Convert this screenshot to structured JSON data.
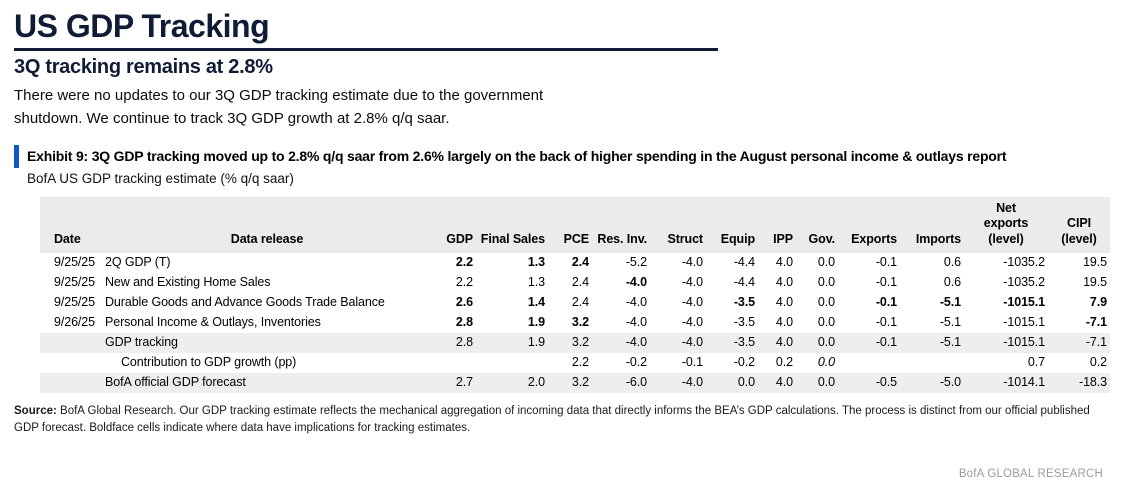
{
  "header": {
    "title": "US GDP Tracking",
    "subtitle": "3Q tracking remains at 2.8%",
    "intro": "There were no updates to our 3Q GDP tracking estimate due to the government shutdown. We continue to track 3Q GDP growth at 2.8% q/q saar."
  },
  "exhibit": {
    "title": "Exhibit 9: 3Q GDP tracking moved up to 2.8% q/q saar from 2.6% largely on the back of higher spending in the August personal income & outlays report",
    "caption": "BofA US GDP tracking estimate (% q/q saar)"
  },
  "table": {
    "columns": [
      "Date",
      "Data release",
      "GDP",
      "Final Sales",
      "PCE",
      "Res. Inv.",
      "Struct",
      "Equip",
      "IPP",
      "Gov.",
      "Exports",
      "Imports",
      "Net exports (level)",
      "CIPI (level)"
    ],
    "rows": [
      {
        "date": "9/25/25",
        "label": "2Q GDP (T)",
        "indent": 0,
        "shaded": false,
        "values": [
          "2.2",
          "1.3",
          "2.4",
          "-5.2",
          "-4.0",
          "-4.4",
          "4.0",
          "0.0",
          "-0.1",
          "0.6",
          "-1035.2",
          "19.5"
        ],
        "bold": [
          0,
          1,
          2
        ],
        "italic": []
      },
      {
        "date": "9/25/25",
        "label": "New and Existing Home Sales",
        "indent": 0,
        "shaded": false,
        "values": [
          "2.2",
          "1.3",
          "2.4",
          "-4.0",
          "-4.0",
          "-4.4",
          "4.0",
          "0.0",
          "-0.1",
          "0.6",
          "-1035.2",
          "19.5"
        ],
        "bold": [
          3
        ],
        "italic": []
      },
      {
        "date": "9/25/25",
        "label": "Durable Goods and Advance Goods Trade Balance",
        "indent": 0,
        "shaded": false,
        "values": [
          "2.6",
          "1.4",
          "2.4",
          "-4.0",
          "-4.0",
          "-3.5",
          "4.0",
          "0.0",
          "-0.1",
          "-5.1",
          "-1015.1",
          "7.9"
        ],
        "bold": [
          0,
          1,
          5,
          8,
          9,
          10,
          11
        ],
        "italic": []
      },
      {
        "date": "9/26/25",
        "label": "Personal Income & Outlays, Inventories",
        "indent": 0,
        "shaded": false,
        "values": [
          "2.8",
          "1.9",
          "3.2",
          "-4.0",
          "-4.0",
          "-3.5",
          "4.0",
          "0.0",
          "-0.1",
          "-5.1",
          "-1015.1",
          "-7.1"
        ],
        "bold": [
          0,
          1,
          2,
          11
        ],
        "italic": []
      },
      {
        "date": "",
        "label": "GDP tracking",
        "indent": 0,
        "shaded": true,
        "values": [
          "2.8",
          "1.9",
          "3.2",
          "-4.0",
          "-4.0",
          "-3.5",
          "4.0",
          "0.0",
          "-0.1",
          "-5.1",
          "-1015.1",
          "-7.1"
        ],
        "bold": [],
        "italic": []
      },
      {
        "date": "",
        "label": "Contribution to GDP growth (pp)",
        "indent": 1,
        "shaded": false,
        "values": [
          "",
          "",
          "2.2",
          "-0.2",
          "-0.1",
          "-0.2",
          "0.2",
          "0.0",
          "",
          "",
          "0.7",
          "0.2"
        ],
        "bold": [],
        "italic": [
          7
        ]
      },
      {
        "date": "",
        "label": "BofA official GDP forecast",
        "indent": 0,
        "shaded": true,
        "values": [
          "2.7",
          "2.0",
          "3.2",
          "-6.0",
          "-4.0",
          "0.0",
          "4.0",
          "0.0",
          "-0.5",
          "-5.0",
          "-1014.1",
          "-18.3"
        ],
        "bold": [],
        "italic": []
      }
    ]
  },
  "footer": {
    "source_label": "Source:",
    "source_text": " BofA Global Research. Our GDP tracking estimate reflects the mechanical aggregation of incoming data that directly informs the BEA’s GDP calculations. The process is distinct from our official published GDP forecast. Boldface cells indicate where data have implications for tracking estimates.",
    "brand": "BofA GLOBAL RESEARCH"
  },
  "colors": {
    "heading_navy": "#101b35",
    "exhibit_accent_blue": "#0d57c9",
    "table_header_gray": "#ebebeb",
    "zebra_row_gray": "#eeeeee",
    "brand_gray": "#9b9b9b"
  }
}
